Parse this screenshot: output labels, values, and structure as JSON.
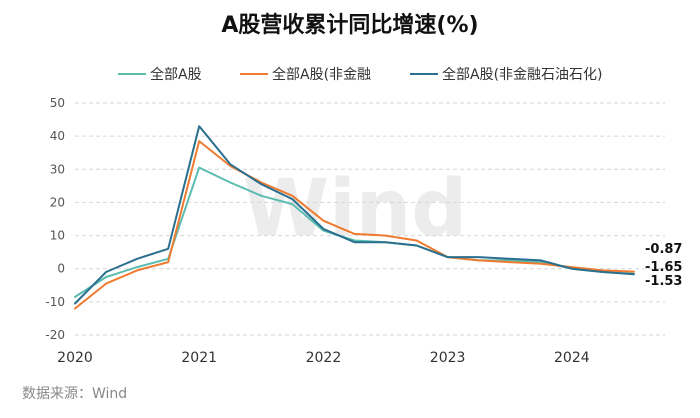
{
  "chart_data": {
    "type": "line",
    "title": "A股营收累计同比增速(%)",
    "source": "数据来源：Wind",
    "watermark": "Wind",
    "ylim": [
      -20,
      50
    ],
    "yticks": [
      50,
      40,
      30,
      20,
      10,
      0,
      -10,
      -20
    ],
    "xlim": [
      2020,
      2024.75
    ],
    "xticks": [
      {
        "x": 2020,
        "label": "2020"
      },
      {
        "x": 2021,
        "label": "2021"
      },
      {
        "x": 2022,
        "label": "2022"
      },
      {
        "x": 2023,
        "label": "2023"
      },
      {
        "x": 2024,
        "label": "2024"
      }
    ],
    "grid": true,
    "legend_position": "top",
    "series": [
      {
        "name": "全部A股",
        "color": "#5bbcb0",
        "points": [
          [
            2020.0,
            -8.5
          ],
          [
            2020.25,
            -2.5
          ],
          [
            2020.5,
            0.5
          ],
          [
            2020.75,
            3.0
          ],
          [
            2021.0,
            30.5
          ],
          [
            2021.25,
            26.0
          ],
          [
            2021.5,
            22.0
          ],
          [
            2021.75,
            19.5
          ],
          [
            2022.0,
            11.5
          ],
          [
            2022.25,
            8.5
          ],
          [
            2022.5,
            8.0
          ],
          [
            2022.75,
            7.0
          ],
          [
            2023.0,
            3.5
          ],
          [
            2023.25,
            2.5
          ],
          [
            2023.5,
            2.5
          ],
          [
            2023.75,
            2.0
          ],
          [
            2024.0,
            0.0
          ],
          [
            2024.25,
            -1.0
          ],
          [
            2024.5,
            -1.53
          ]
        ],
        "end_label": "-1.53"
      },
      {
        "name": "全部A股(非金融",
        "color": "#ee7b30",
        "points": [
          [
            2020.0,
            -12.0
          ],
          [
            2020.25,
            -4.5
          ],
          [
            2020.5,
            -0.5
          ],
          [
            2020.75,
            2.0
          ],
          [
            2021.0,
            38.5
          ],
          [
            2021.25,
            31.0
          ],
          [
            2021.5,
            26.0
          ],
          [
            2021.75,
            22.0
          ],
          [
            2022.0,
            14.5
          ],
          [
            2022.25,
            10.5
          ],
          [
            2022.5,
            10.0
          ],
          [
            2022.75,
            8.5
          ],
          [
            2023.0,
            3.5
          ],
          [
            2023.25,
            2.5
          ],
          [
            2023.5,
            2.0
          ],
          [
            2023.75,
            1.5
          ],
          [
            2024.0,
            0.5
          ],
          [
            2024.25,
            -0.5
          ],
          [
            2024.5,
            -0.87
          ]
        ],
        "end_label": "-0.87"
      },
      {
        "name": "全部A股(非金融石油石化)",
        "color": "#2a6f8e",
        "points": [
          [
            2020.0,
            -10.5
          ],
          [
            2020.25,
            -1.0
          ],
          [
            2020.5,
            3.0
          ],
          [
            2020.75,
            6.0
          ],
          [
            2021.0,
            43.0
          ],
          [
            2021.25,
            31.5
          ],
          [
            2021.5,
            25.5
          ],
          [
            2021.75,
            21.0
          ],
          [
            2022.0,
            12.0
          ],
          [
            2022.25,
            8.0
          ],
          [
            2022.5,
            8.0
          ],
          [
            2022.75,
            7.0
          ],
          [
            2023.0,
            3.5
          ],
          [
            2023.25,
            3.5
          ],
          [
            2023.5,
            3.0
          ],
          [
            2023.75,
            2.5
          ],
          [
            2024.0,
            0.0
          ],
          [
            2024.25,
            -1.0
          ],
          [
            2024.5,
            -1.65
          ]
        ],
        "end_label": "-1.65"
      }
    ]
  }
}
